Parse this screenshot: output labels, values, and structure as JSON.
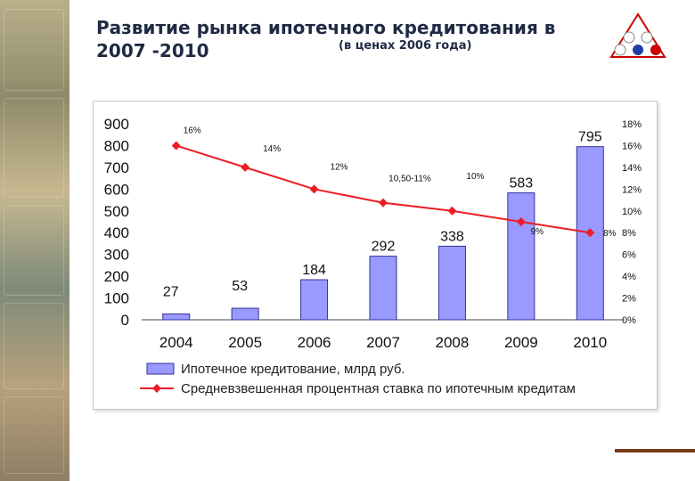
{
  "header": {
    "title": "Развитие рынка ипотечного кредитования в 2007 -2010",
    "subtitle": "(в ценах 2006 года)"
  },
  "colors": {
    "bar": "#9999ff",
    "bar_edge": "#333399",
    "line": "#ee1c25",
    "title": "#1f2a44"
  },
  "chart_data": {
    "type": "bar",
    "categories": [
      "2004",
      "2005",
      "2006",
      "2007",
      "2008",
      "2009",
      "2010"
    ],
    "series": [
      {
        "name": "Ипотечное кредитование, млрд руб.",
        "type": "bar",
        "axis": "left",
        "values": [
          27,
          53,
          184,
          292,
          338,
          583,
          795
        ],
        "labels": [
          "27",
          "53",
          "184",
          "292",
          "338",
          "583",
          "795"
        ]
      },
      {
        "name": "Средневзвешенная процентная ставка по ипотечным кредитам",
        "type": "line",
        "axis": "right",
        "values": [
          16,
          14,
          12,
          10.75,
          10,
          9,
          8
        ],
        "labels": [
          "16%",
          "14%",
          "12%",
          "10,50-11%",
          "10%",
          "9%",
          "8%"
        ]
      }
    ],
    "yleft": {
      "ylim": [
        0,
        900
      ],
      "ticks": [
        "0",
        "100",
        "200",
        "300",
        "400",
        "500",
        "600",
        "700",
        "800",
        "900"
      ]
    },
    "yright": {
      "ylim": [
        0,
        18
      ],
      "ticks": [
        "0%",
        "2%",
        "4%",
        "6%",
        "8%",
        "10%",
        "12%",
        "14%",
        "16%",
        "18%"
      ]
    },
    "legend_position": "bottom",
    "grid": false
  }
}
